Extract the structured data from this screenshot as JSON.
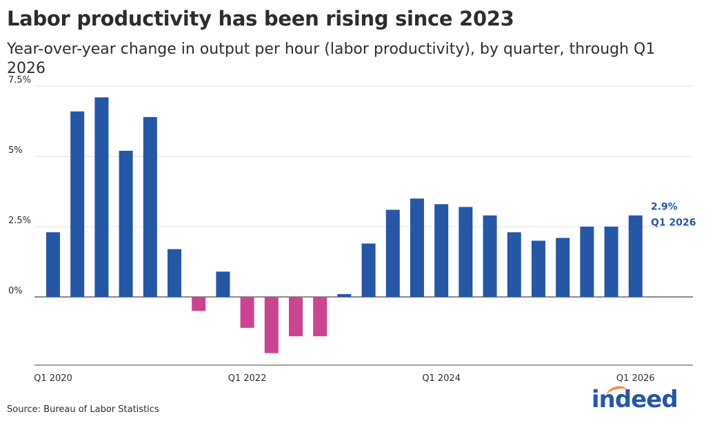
{
  "title": "Labor productivity has been rising since 2023",
  "subtitle": "Year-over-year change in output per hour (labor productivity), by quarter, through Q1 2026",
  "source": "Source: Bureau of Labor Statistics",
  "logo_text": "indeed",
  "colors": {
    "positive": "#2557a7",
    "negative": "#cc4392",
    "grid": "#e0e0e0",
    "zero": "#444444"
  },
  "chart_data": {
    "type": "bar",
    "categories": [
      "Q1 2020",
      "Q2 2020",
      "Q3 2020",
      "Q4 2020",
      "Q1 2021",
      "Q2 2021",
      "Q3 2021",
      "Q4 2021",
      "Q1 2022",
      "Q2 2022",
      "Q3 2022",
      "Q4 2022",
      "Q1 2023",
      "Q2 2023",
      "Q3 2023",
      "Q4 2023",
      "Q1 2024",
      "Q2 2024",
      "Q3 2024",
      "Q4 2024",
      "Q1 2025",
      "Q2 2025",
      "Q3 2025",
      "Q4 2025",
      "Q1 2026"
    ],
    "values": [
      2.3,
      6.6,
      7.1,
      5.2,
      6.4,
      1.7,
      -0.5,
      0.9,
      -1.1,
      -2.0,
      -1.4,
      -1.4,
      0.1,
      1.9,
      3.1,
      3.5,
      3.3,
      3.2,
      2.9,
      2.3,
      2.0,
      2.1,
      2.5,
      2.5,
      2.9
    ],
    "xticks": [
      "Q1 2020",
      "Q1 2022",
      "Q1 2024",
      "Q1 2026"
    ],
    "yticks": [
      {
        "value": 0,
        "label": "0%"
      },
      {
        "value": 2.5,
        "label": "2.5%"
      },
      {
        "value": 5,
        "label": "5%"
      },
      {
        "value": 7.5,
        "label": "7.5%"
      }
    ],
    "ylim": [
      -2.3,
      7.5
    ],
    "grid": true,
    "annotation": {
      "value_label": "2.9%",
      "period_label": "Q1 2026"
    }
  }
}
